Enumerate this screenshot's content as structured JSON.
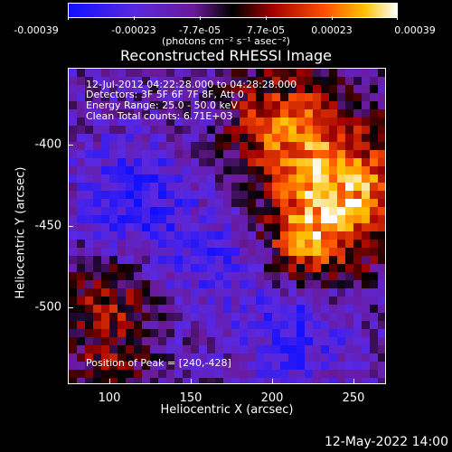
{
  "colorbar": {
    "ticks": [
      "-0.00039",
      "-0.00023",
      "-7.7e-05",
      "7.7e-05",
      "0.00023",
      "0.00039"
    ],
    "units": "(photons cm⁻² s⁻¹ asec⁻²)"
  },
  "title": "Reconstructed RHESSI Image",
  "info": {
    "time": "12-Jul-2012 04:22:28.000 to 04:28:28.000",
    "detectors": "Detectors: 3F 5F 6F 7F 8F, Att 0",
    "energy": "Energy Range: 25.0 - 50.0 keV",
    "clean": "Clean     Total counts: 6.71E+03",
    "peak": "Position of Peak = [240,-428]"
  },
  "axes": {
    "xlabel": "Heliocentric X (arcsec)",
    "ylabel": "Heliocentric Y (arcsec)",
    "xticks": [
      "100",
      "150",
      "200",
      "250"
    ],
    "yticks": [
      "-400",
      "-450",
      "-500"
    ]
  },
  "footer": "12-May-2022 14:00",
  "colors": {
    "background": "#000000",
    "text": "#ffffff"
  }
}
